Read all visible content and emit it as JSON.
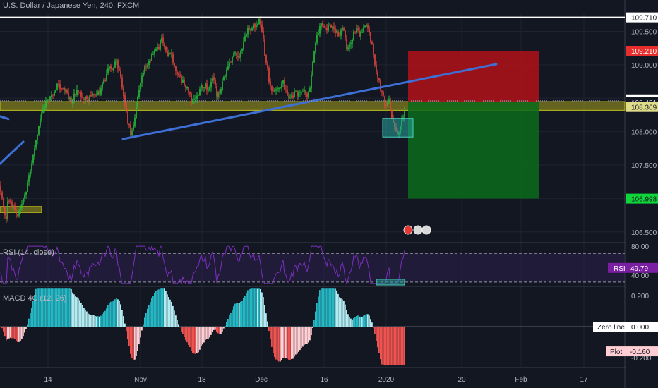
{
  "header": {
    "main_title": "U.S. Dollar / Japanese Yen, 240, FXCM",
    "rsi_title": "RSI (14, close)",
    "macd_title": "MACD 4C (12, 26)"
  },
  "colors": {
    "background": "#131722",
    "bull": "#26c23a",
    "bear": "#e8453c",
    "trendline": "#3d6fd6",
    "zone": "#c8c41a",
    "rsi_line": "#7b2fbf",
    "macd_cyan": "#25b7c4",
    "macd_lightcyan": "#b2ebf2",
    "macd_red": "#ef5350",
    "macd_pink": "#ffcdd2",
    "label_red": "#e82d2d",
    "label_green": "#0fd43a"
  },
  "chart_data": [
    {
      "type": "candlestick",
      "title": "U.S. Dollar / Japanese Yen, 240, FXCM",
      "ylim": [
        106.35,
        109.78
      ],
      "y_ticks": [
        "109.500",
        "109.000",
        "108.000",
        "107.500",
        "106.500"
      ],
      "x_ticks": [
        "14",
        "Nov",
        "18",
        "Dec",
        "16",
        "2020",
        "20",
        "Feb",
        "17"
      ],
      "price_labels": [
        {
          "value": "109.710",
          "style": "white"
        },
        {
          "value": "109.210",
          "style": "red"
        },
        {
          "value": "108.463",
          "style": "white"
        },
        {
          "value": "108.451",
          "style": "dark"
        },
        {
          "value": "108.369",
          "style": "zone"
        },
        {
          "value": "106.998",
          "style": "green"
        }
      ],
      "path_points": [
        [
          0,
          107.2
        ],
        [
          4,
          107.0
        ],
        [
          8,
          106.65
        ],
        [
          12,
          107.0
        ],
        [
          18,
          106.9
        ],
        [
          25,
          106.75
        ],
        [
          32,
          107.0
        ],
        [
          38,
          107.15
        ],
        [
          44,
          107.45
        ],
        [
          50,
          107.8
        ],
        [
          55,
          108.1
        ],
        [
          60,
          108.35
        ],
        [
          65,
          108.45
        ],
        [
          72,
          108.5
        ],
        [
          78,
          108.6
        ],
        [
          82,
          108.7
        ],
        [
          90,
          108.65
        ],
        [
          100,
          108.45
        ],
        [
          110,
          108.6
        ],
        [
          118,
          108.5
        ],
        [
          124,
          108.45
        ],
        [
          130,
          108.6
        ],
        [
          138,
          108.55
        ],
        [
          146,
          108.7
        ],
        [
          152,
          108.9
        ],
        [
          158,
          108.95
        ],
        [
          165,
          109.05
        ],
        [
          170,
          108.85
        ],
        [
          174,
          108.6
        ],
        [
          178,
          108.35
        ],
        [
          182,
          108.1
        ],
        [
          186,
          107.95
        ],
        [
          190,
          108.15
        ],
        [
          195,
          108.5
        ],
        [
          200,
          108.75
        ],
        [
          206,
          109.0
        ],
        [
          212,
          109.05
        ],
        [
          218,
          109.2
        ],
        [
          224,
          109.25
        ],
        [
          230,
          109.4
        ],
        [
          236,
          109.15
        ],
        [
          242,
          109.2
        ],
        [
          248,
          108.95
        ],
        [
          254,
          108.8
        ],
        [
          260,
          108.75
        ],
        [
          266,
          108.6
        ],
        [
          272,
          108.45
        ],
        [
          278,
          108.55
        ],
        [
          284,
          108.65
        ],
        [
          290,
          108.7
        ],
        [
          296,
          108.6
        ],
        [
          302,
          108.8
        ],
        [
          308,
          108.5
        ],
        [
          314,
          108.7
        ],
        [
          320,
          108.9
        ],
        [
          326,
          109.0
        ],
        [
          332,
          109.2
        ],
        [
          338,
          109.1
        ],
        [
          344,
          109.3
        ],
        [
          350,
          109.5
        ],
        [
          356,
          109.55
        ],
        [
          362,
          109.6
        ],
        [
          368,
          109.7
        ],
        [
          372,
          109.45
        ],
        [
          376,
          109.05
        ],
        [
          380,
          108.85
        ],
        [
          384,
          108.6
        ],
        [
          388,
          108.55
        ],
        [
          394,
          108.65
        ],
        [
          400,
          108.75
        ],
        [
          406,
          108.6
        ],
        [
          412,
          108.5
        ],
        [
          418,
          108.6
        ],
        [
          424,
          108.55
        ],
        [
          430,
          108.6
        ],
        [
          436,
          108.55
        ],
        [
          440,
          108.7
        ],
        [
          444,
          109.1
        ],
        [
          448,
          109.4
        ],
        [
          452,
          109.55
        ],
        [
          456,
          109.6
        ],
        [
          462,
          109.55
        ],
        [
          468,
          109.6
        ],
        [
          474,
          109.5
        ],
        [
          480,
          109.45
        ],
        [
          486,
          109.55
        ],
        [
          492,
          109.2
        ],
        [
          498,
          109.4
        ],
        [
          504,
          109.5
        ],
        [
          510,
          109.45
        ],
        [
          516,
          109.55
        ],
        [
          520,
          109.6
        ],
        [
          526,
          109.35
        ],
        [
          530,
          109.05
        ],
        [
          534,
          108.9
        ],
        [
          538,
          108.7
        ],
        [
          542,
          108.55
        ],
        [
          546,
          108.35
        ],
        [
          550,
          108.5
        ],
        [
          554,
          108.25
        ],
        [
          558,
          108.05
        ],
        [
          562,
          107.95
        ],
        [
          566,
          108.0
        ],
        [
          570,
          108.2
        ],
        [
          575,
          108.45
        ]
      ],
      "overlays": [
        {
          "kind": "trendline",
          "from": [
            174,
            107.89
          ],
          "to": [
            703,
            109.01
          ]
        },
        {
          "kind": "trendline",
          "from": [
            0,
            107.52
          ],
          "to": [
            33,
            107.85
          ]
        },
        {
          "kind": "trendline",
          "from": [
            0,
            108.23
          ],
          "to": [
            12,
            108.19
          ]
        },
        {
          "kind": "hline",
          "value": 109.71
        },
        {
          "kind": "zone",
          "y1": 108.45,
          "y2": 108.32
        },
        {
          "kind": "zone",
          "x1": 0,
          "x2": 59,
          "y1": 106.88,
          "y2": 106.79
        },
        {
          "kind": "box",
          "x1": 542,
          "x2": 585,
          "y1": 108.2,
          "y2": 107.92
        },
        {
          "kind": "target_box",
          "color": "red",
          "x1": 578,
          "x2": 764,
          "y1": 109.21,
          "y2": 108.45
        },
        {
          "kind": "target_box",
          "color": "green",
          "x1": 578,
          "x2": 764,
          "y1": 108.45,
          "y2": 106.998
        }
      ]
    },
    {
      "type": "line",
      "title": "RSI (14, close)",
      "ylim": [
        25,
        85
      ],
      "y_ticks": [
        "80.00",
        "40.00"
      ],
      "levels": [
        70,
        30
      ],
      "last_label": "RSI",
      "last_value": "49.79"
    },
    {
      "type": "bar",
      "title": "MACD 4C (12, 26)",
      "ylim": [
        -0.26,
        0.26
      ],
      "y_ticks": [
        "0.200",
        "-0.200"
      ],
      "zero_label": "Zero line",
      "zero_value": "0.000",
      "plot_label": "Plot",
      "plot_value": "-0.160"
    }
  ]
}
